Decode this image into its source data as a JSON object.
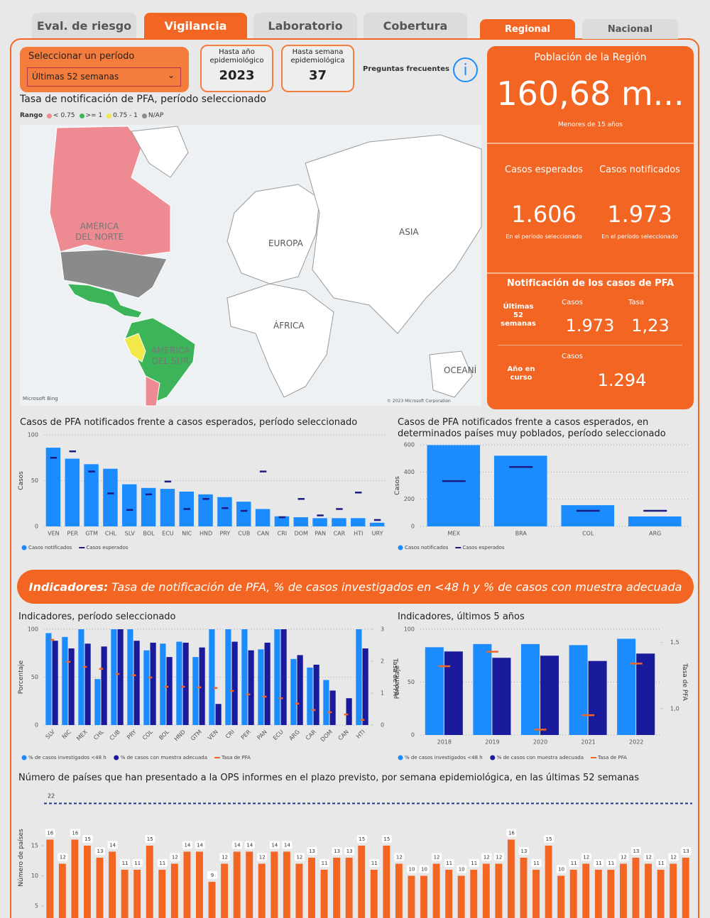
{
  "tabs": [
    "Eval. de riesgo",
    "Vigilancia",
    "Laboratorio",
    "Cobertura"
  ],
  "scope_tabs": [
    "Regional",
    "Nacional"
  ],
  "filter": {
    "label": "Seleccionar un período",
    "value": "Últimas 52 semanas"
  },
  "year_card": {
    "label": "Hasta año epidemiológico",
    "value": "2023"
  },
  "week_card": {
    "label": "Hasta semana epidemiológica",
    "value": "37"
  },
  "faq": "Preguntas frecuentes",
  "kpis": {
    "population": {
      "title": "Población de la Región",
      "value": "160,68 m...",
      "note": "Menores de 15 años"
    },
    "expected": {
      "title": "Casos esperados",
      "value": "1.606",
      "note": "En el período seleccionado"
    },
    "notified": {
      "title": "Casos notificados",
      "value": "1.973",
      "note": "En el período seleccionado"
    },
    "notification": {
      "title": "Notificación de los casos de PFA",
      "period_label": "Últimas 52 semanas",
      "cases_label": "Casos",
      "rate_label": "Tasa",
      "cases": "1.973",
      "rate": "1,23",
      "ytd_label": "Año en curso",
      "ytd_cases_label": "Casos",
      "ytd_cases": "1.294"
    }
  },
  "map": {
    "title": "Tasa de notificación de PFA, período seleccionado",
    "legend_title": "Rango",
    "legend": [
      {
        "label": "< 0.75",
        "color": "#ee8a92"
      },
      {
        "label": ">= 1",
        "color": "#3cb45a"
      },
      {
        "label": "0.75 - 1",
        "color": "#f2e84a"
      },
      {
        "label": "N/AP",
        "color": "#8a8a8a"
      }
    ],
    "labels": [
      "AMÉRICA DEL NORTE",
      "EUROPA",
      "ASIA",
      "ÁFRICA",
      "AMÉRICA DEL SUR",
      "OCEANÍ"
    ],
    "brand": "Microsoft Bing",
    "credit": "© 2023 Microsoft Corporation"
  },
  "banner": {
    "lead": "Indicadores:",
    "text": "Tasa de notificación de PFA, % de casos investigados en <48 h y % de casos con muestra adecuada"
  },
  "chart_data": [
    {
      "type": "bar",
      "title": "Casos de PFA notificados frente a casos esperados, período seleccionado",
      "y_label": "Casos",
      "categories": [
        "VEN",
        "PER",
        "GTM",
        "CHL",
        "SLV",
        "BOL",
        "ECU",
        "NIC",
        "HND",
        "PRY",
        "CUB",
        "CAN",
        "CRI",
        "DOM",
        "PAN",
        "CAR",
        "HTI",
        "URY"
      ],
      "series": [
        {
          "name": "Casos notificados",
          "color": "#1a8cff",
          "values": [
            86,
            74,
            68,
            63,
            46,
            42,
            41,
            38,
            35,
            32,
            27,
            19,
            11,
            10,
            9,
            9,
            9,
            4
          ]
        },
        {
          "name": "Casos esperados",
          "color": "#1a1a80",
          "type": "marker",
          "values": [
            75,
            82,
            60,
            36,
            18,
            35,
            49,
            19,
            30,
            20,
            17,
            60,
            10,
            30,
            12,
            19,
            37,
            7
          ]
        }
      ],
      "ylim": [
        0,
        100
      ],
      "yticks": [
        0,
        50,
        100
      ],
      "grid": true
    },
    {
      "type": "bar",
      "title": "Casos de PFA notificados frente a casos esperados, en determinados países muy poblados, período seleccionado",
      "y_label": "Casos",
      "categories": [
        "MEX",
        "BRA",
        "COL",
        "ARG"
      ],
      "series": [
        {
          "name": "Casos notificados",
          "color": "#1a8cff",
          "values": [
            598,
            520,
            156,
            73
          ]
        },
        {
          "name": "Casos esperados",
          "color": "#1a1a80",
          "type": "marker",
          "values": [
            333,
            437,
            115,
            115
          ]
        }
      ],
      "ylim": [
        0,
        600
      ],
      "yticks": [
        0,
        200,
        400,
        600
      ],
      "grid": true
    },
    {
      "type": "bar",
      "title": "Indicadores, período seleccionado",
      "y_label": "Porcentaje",
      "y2_label": "Tasa de PFA",
      "categories": [
        "SLV",
        "NIC",
        "MEX",
        "CHL",
        "CUB",
        "PRY",
        "COL",
        "BOL",
        "HND",
        "GTM",
        "VEN",
        "CRI",
        "PER",
        "PAN",
        "ECU",
        "ARG",
        "CAR",
        "DOM",
        "CAN",
        "HTI"
      ],
      "series": [
        {
          "name": "% de casos investigados <48 h",
          "color": "#1a8cff",
          "values": [
            96,
            92,
            100,
            48,
            100,
            100,
            78,
            85,
            87,
            71,
            100,
            100,
            100,
            79,
            100,
            69,
            60,
            47,
            0,
            100
          ]
        },
        {
          "name": "% de casos con muestra adecuada",
          "color": "#1a1a9c",
          "values": [
            88,
            80,
            85,
            82,
            100,
            88,
            86,
            71,
            86,
            81,
            22,
            87,
            78,
            86,
            100,
            73,
            63,
            36,
            28,
            80
          ]
        },
        {
          "name": "Tasa de PFA",
          "color": "#f26522",
          "type": "marker",
          "axis": "y2",
          "values": [
            2.67,
            1.98,
            1.82,
            1.76,
            1.6,
            1.56,
            1.49,
            1.2,
            1.2,
            1.18,
            1.16,
            1.07,
            0.96,
            0.89,
            0.84,
            0.67,
            0.47,
            0.4,
            0.33,
            0.16
          ]
        }
      ],
      "ylim": [
        0,
        100
      ],
      "yticks": [
        0,
        50,
        100
      ],
      "y2lim": [
        0,
        3
      ],
      "y2ticks": [
        0,
        1,
        2,
        3
      ],
      "grid": true
    },
    {
      "type": "bar",
      "title": "Indicadores, últimos 5 años",
      "y_label": "Porcentaje",
      "y2_label": "Tasa de PFA",
      "categories": [
        "2018",
        "2019",
        "2020",
        "2021",
        "2022"
      ],
      "series": [
        {
          "name": "% de casos investigados <48 h",
          "color": "#1a8cff",
          "values": [
            83,
            86,
            86,
            85,
            91
          ]
        },
        {
          "name": "% de casos con muestra adecuada",
          "color": "#1a1a9c",
          "values": [
            79,
            73,
            75,
            70,
            77
          ]
        },
        {
          "name": "Tasa de PFA",
          "color": "#f26522",
          "type": "marker",
          "axis": "y2",
          "values": [
            1.32,
            1.43,
            0.84,
            0.95,
            1.34
          ]
        }
      ],
      "ylim": [
        0,
        100
      ],
      "yticks": [
        0,
        50,
        100
      ],
      "y2lim": [
        0.8,
        1.6
      ],
      "y2ticks": [
        {
          "value": 1,
          "label": "1,0"
        },
        {
          "value": 1.5,
          "label": "1,5"
        }
      ],
      "grid": true
    },
    {
      "type": "bar",
      "title": "Número de países que han presentado a la OPS informes en el plazo previsto, por semana epidemiológica, en las últimas 52 semanas",
      "y_label": "Número de países",
      "values": [
        16,
        12,
        16,
        15,
        13,
        14,
        11,
        11,
        15,
        11,
        12,
        14,
        14,
        9,
        12,
        14,
        14,
        12,
        14,
        14,
        12,
        13,
        11,
        13,
        13,
        15,
        11,
        15,
        12,
        10,
        10,
        12,
        11,
        10,
        11,
        12,
        12,
        16,
        13,
        11,
        15,
        10,
        11,
        12,
        11,
        11,
        12,
        13,
        12,
        11,
        12,
        13
      ],
      "color": "#f26522",
      "data_labels": true,
      "reference_line": 22,
      "reference_color": "#1a3a80",
      "ylim": [
        3,
        23
      ],
      "yticks": [
        5,
        10,
        15
      ],
      "grid": false
    }
  ]
}
